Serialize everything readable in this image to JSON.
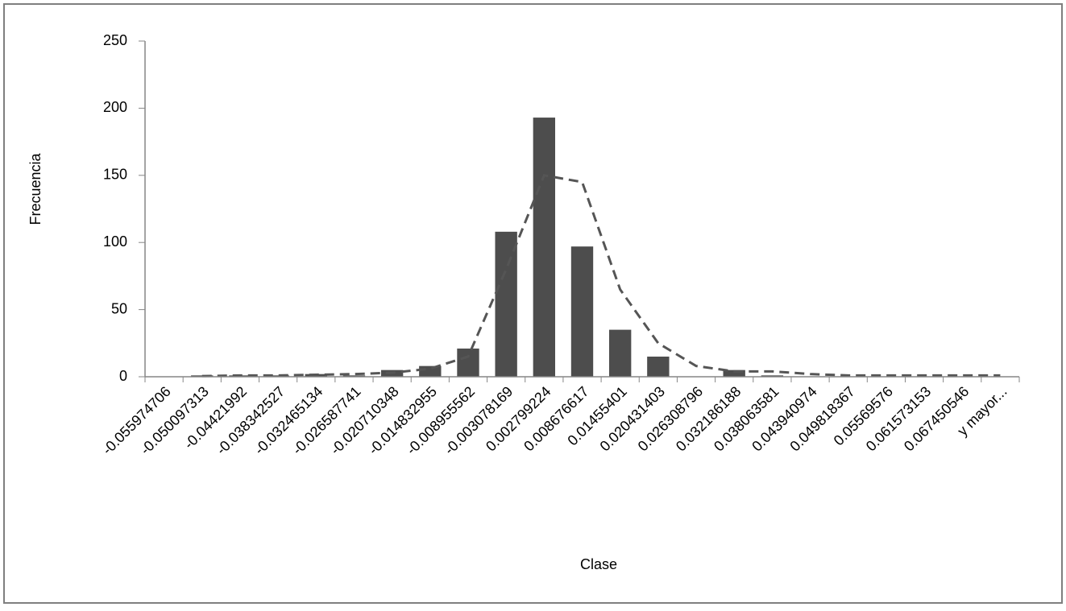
{
  "chart_data": {
    "type": "bar",
    "x_label": "Clase",
    "y_label": "Frecuencia",
    "categories": [
      "-0.055974706",
      "-0.050097313",
      "-0.04421992",
      "-0.038342527",
      "-0.032465134",
      "-0.026587741",
      "-0.020710348",
      "-0.014832955",
      "-0.008955562",
      "-0.003078169",
      "0.002799224",
      "0.008676617",
      "0.01455401",
      "0.020431403",
      "0.026308796",
      "0.032186188",
      "0.038063581",
      "0.043940974",
      "0.049818367",
      "0.05569576",
      "0.061573153",
      "0.067450546",
      "y mayor..."
    ],
    "series": [
      {
        "type": "bar",
        "color": "#4d4d4d",
        "values": [
          0,
          1,
          1,
          1,
          2,
          1,
          5,
          8,
          21,
          108,
          193,
          97,
          35,
          15,
          0,
          5,
          1,
          0,
          0,
          0,
          0,
          0,
          0
        ]
      },
      {
        "type": "line",
        "color": "#555555",
        "dashed": true,
        "values": [
          null,
          0.5,
          1,
          1,
          1.5,
          2,
          3,
          6,
          15,
          80,
          150,
          145,
          65,
          25,
          8,
          4,
          4,
          2,
          1,
          1,
          1,
          1,
          1
        ]
      }
    ],
    "ylim": [
      0,
      250
    ],
    "yticks": [
      0,
      50,
      100,
      150,
      200,
      250
    ],
    "grid": false
  }
}
